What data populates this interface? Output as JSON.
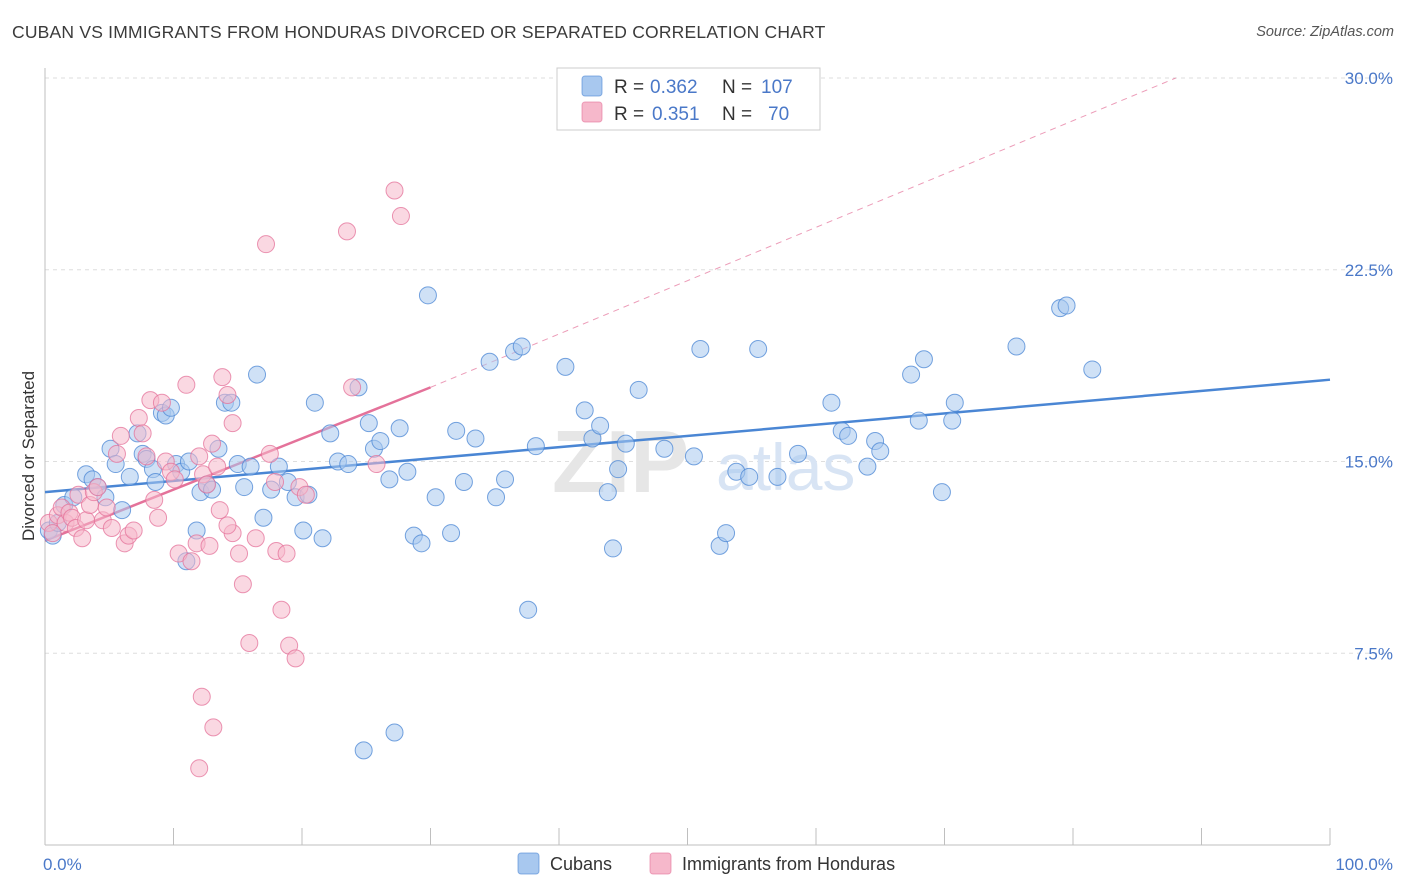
{
  "title": "CUBAN VS IMMIGRANTS FROM HONDURAS DIVORCED OR SEPARATED CORRELATION CHART",
  "source": "Source: ZipAtlas.com",
  "watermark": {
    "zip": "ZIP",
    "atlas": "atlas"
  },
  "legend": {
    "rows": [
      {
        "r_label": "R =",
        "r_value": "0.362",
        "n_label": "N =",
        "n_value": "107",
        "color": "#a8c8ef"
      },
      {
        "r_label": "R =",
        "r_value": "0.351",
        "n_label": "N =",
        "n_value": "70",
        "color": "#f6b8cb"
      }
    ]
  },
  "bottom_legend": [
    {
      "label": "Cubans",
      "color": "#a8c8ef"
    },
    {
      "label": "Immigrants from Honduras",
      "color": "#f6b8cb"
    }
  ],
  "chart_data": {
    "type": "scatter",
    "title": "CUBAN VS IMMIGRANTS FROM HONDURAS DIVORCED OR SEPARATED CORRELATION CHART",
    "xlabel": "",
    "ylabel": "Divorced or Separated",
    "xlim": [
      0,
      100
    ],
    "ylim": [
      0,
      30
    ],
    "x_tick_labels": [
      "0.0%",
      "100.0%"
    ],
    "y_ticks": [
      7.5,
      15.0,
      22.5,
      30.0
    ],
    "y_tick_labels": [
      "7.5%",
      "15.0%",
      "22.5%",
      "30.0%"
    ],
    "grid": true,
    "series": [
      {
        "name": "Cubans",
        "color": "#4a86d4",
        "fill": "#a8c8ef",
        "trend": {
          "x": [
            0,
            100
          ],
          "y": [
            13.8,
            18.2
          ]
        },
        "points": [
          [
            0.3,
            12.3
          ],
          [
            0.6,
            12.1
          ],
          [
            1.0,
            12.6
          ],
          [
            1.5,
            13.3
          ],
          [
            2.2,
            13.6
          ],
          [
            3.2,
            14.5
          ],
          [
            3.7,
            14.3
          ],
          [
            4.1,
            14.0
          ],
          [
            4.7,
            13.6
          ],
          [
            5.1,
            15.5
          ],
          [
            5.5,
            14.9
          ],
          [
            6.0,
            13.1
          ],
          [
            6.6,
            14.4
          ],
          [
            7.2,
            16.1
          ],
          [
            7.6,
            15.3
          ],
          [
            7.9,
            15.1
          ],
          [
            8.4,
            14.7
          ],
          [
            8.6,
            14.2
          ],
          [
            9.1,
            16.9
          ],
          [
            9.4,
            16.8
          ],
          [
            9.8,
            17.1
          ],
          [
            10.2,
            14.9
          ],
          [
            10.6,
            14.6
          ],
          [
            11.2,
            15.0
          ],
          [
            11.8,
            12.3
          ],
          [
            12.1,
            13.8
          ],
          [
            12.6,
            14.1
          ],
          [
            13.0,
            13.9
          ],
          [
            13.5,
            15.5
          ],
          [
            14.0,
            17.3
          ],
          [
            14.5,
            17.3
          ],
          [
            15.0,
            14.9
          ],
          [
            15.5,
            14.0
          ],
          [
            16.0,
            14.8
          ],
          [
            16.5,
            18.4
          ],
          [
            17.0,
            12.8
          ],
          [
            17.6,
            13.9
          ],
          [
            18.2,
            14.8
          ],
          [
            18.9,
            14.2
          ],
          [
            19.5,
            13.6
          ],
          [
            20.1,
            12.3
          ],
          [
            20.5,
            13.7
          ],
          [
            21.0,
            17.3
          ],
          [
            21.6,
            12.0
          ],
          [
            22.2,
            16.1
          ],
          [
            22.8,
            15.0
          ],
          [
            23.6,
            14.9
          ],
          [
            24.4,
            17.9
          ],
          [
            25.2,
            16.5
          ],
          [
            25.6,
            15.5
          ],
          [
            26.1,
            15.8
          ],
          [
            26.8,
            14.3
          ],
          [
            27.6,
            16.3
          ],
          [
            28.2,
            14.6
          ],
          [
            28.7,
            12.1
          ],
          [
            29.3,
            11.8
          ],
          [
            29.8,
            21.5
          ],
          [
            30.4,
            13.6
          ],
          [
            31.6,
            12.2
          ],
          [
            32.0,
            16.2
          ],
          [
            32.6,
            14.2
          ],
          [
            33.5,
            15.9
          ],
          [
            34.6,
            18.9
          ],
          [
            35.1,
            13.6
          ],
          [
            35.8,
            14.3
          ],
          [
            36.5,
            19.3
          ],
          [
            37.1,
            19.5
          ],
          [
            37.6,
            9.2
          ],
          [
            38.2,
            15.6
          ],
          [
            40.5,
            18.7
          ],
          [
            42.0,
            17.0
          ],
          [
            42.6,
            15.9
          ],
          [
            43.2,
            16.4
          ],
          [
            43.8,
            13.8
          ],
          [
            44.2,
            11.6
          ],
          [
            44.6,
            14.7
          ],
          [
            45.2,
            15.7
          ],
          [
            46.2,
            17.8
          ],
          [
            48.2,
            15.5
          ],
          [
            50.5,
            15.2
          ],
          [
            51.0,
            19.4
          ],
          [
            52.5,
            11.7
          ],
          [
            53.0,
            12.2
          ],
          [
            53.8,
            14.6
          ],
          [
            54.8,
            14.4
          ],
          [
            55.5,
            19.4
          ],
          [
            57.0,
            14.4
          ],
          [
            58.6,
            15.3
          ],
          [
            61.2,
            17.3
          ],
          [
            62.0,
            16.2
          ],
          [
            62.5,
            16.0
          ],
          [
            64.0,
            14.8
          ],
          [
            64.6,
            15.8
          ],
          [
            65.0,
            15.4
          ],
          [
            67.4,
            18.4
          ],
          [
            68.0,
            16.6
          ],
          [
            68.4,
            19.0
          ],
          [
            69.8,
            13.8
          ],
          [
            70.6,
            16.6
          ],
          [
            70.8,
            17.3
          ],
          [
            75.6,
            19.5
          ],
          [
            79.0,
            21.0
          ],
          [
            79.5,
            21.1
          ],
          [
            81.5,
            18.6
          ],
          [
            27.2,
            4.4
          ],
          [
            24.8,
            3.7
          ],
          [
            11.0,
            11.1
          ]
        ]
      },
      {
        "name": "Immigrants from Honduras",
        "color": "#e4729a",
        "fill": "#f6b8cb",
        "trend": {
          "x": [
            0,
            30
          ],
          "y": [
            11.9,
            17.9
          ]
        },
        "trend_dashed": {
          "x": [
            30,
            88
          ],
          "y": [
            17.9,
            30.0
          ]
        },
        "points": [
          [
            0.3,
            12.6
          ],
          [
            0.6,
            12.2
          ],
          [
            1.0,
            12.9
          ],
          [
            1.3,
            13.2
          ],
          [
            1.6,
            12.6
          ],
          [
            1.9,
            13.0
          ],
          [
            2.1,
            12.8
          ],
          [
            2.4,
            12.4
          ],
          [
            2.6,
            13.7
          ],
          [
            2.9,
            12.0
          ],
          [
            3.2,
            12.7
          ],
          [
            3.5,
            13.3
          ],
          [
            3.8,
            13.8
          ],
          [
            4.1,
            14.0
          ],
          [
            4.5,
            12.7
          ],
          [
            4.8,
            13.2
          ],
          [
            5.2,
            12.4
          ],
          [
            5.6,
            15.3
          ],
          [
            5.9,
            16.0
          ],
          [
            6.2,
            11.8
          ],
          [
            6.5,
            12.1
          ],
          [
            6.9,
            12.3
          ],
          [
            7.3,
            16.7
          ],
          [
            7.6,
            16.1
          ],
          [
            7.9,
            15.2
          ],
          [
            8.2,
            17.4
          ],
          [
            8.5,
            13.5
          ],
          [
            8.8,
            12.8
          ],
          [
            9.1,
            17.3
          ],
          [
            9.4,
            15.0
          ],
          [
            9.8,
            14.6
          ],
          [
            10.1,
            14.3
          ],
          [
            10.4,
            11.4
          ],
          [
            11.0,
            18.0
          ],
          [
            11.4,
            11.1
          ],
          [
            11.8,
            11.8
          ],
          [
            12.0,
            15.2
          ],
          [
            12.3,
            14.5
          ],
          [
            12.6,
            14.1
          ],
          [
            13.0,
            15.7
          ],
          [
            13.4,
            14.8
          ],
          [
            13.8,
            18.3
          ],
          [
            14.2,
            17.6
          ],
          [
            14.6,
            16.5
          ],
          [
            15.1,
            11.4
          ],
          [
            15.4,
            10.2
          ],
          [
            15.9,
            7.9
          ],
          [
            16.4,
            12.0
          ],
          [
            17.2,
            23.5
          ],
          [
            17.5,
            15.3
          ],
          [
            18.0,
            11.5
          ],
          [
            18.4,
            9.2
          ],
          [
            19.0,
            7.8
          ],
          [
            19.5,
            7.3
          ],
          [
            14.6,
            12.2
          ],
          [
            14.2,
            12.5
          ],
          [
            13.6,
            13.1
          ],
          [
            12.8,
            11.7
          ],
          [
            12.2,
            5.8
          ],
          [
            13.1,
            4.6
          ],
          [
            12.0,
            3.0
          ],
          [
            23.5,
            24.0
          ],
          [
            23.9,
            17.9
          ],
          [
            27.2,
            25.6
          ],
          [
            27.7,
            24.6
          ],
          [
            25.8,
            14.9
          ],
          [
            18.8,
            11.4
          ],
          [
            17.9,
            14.2
          ],
          [
            19.8,
            14.0
          ],
          [
            20.3,
            13.7
          ]
        ]
      }
    ]
  }
}
